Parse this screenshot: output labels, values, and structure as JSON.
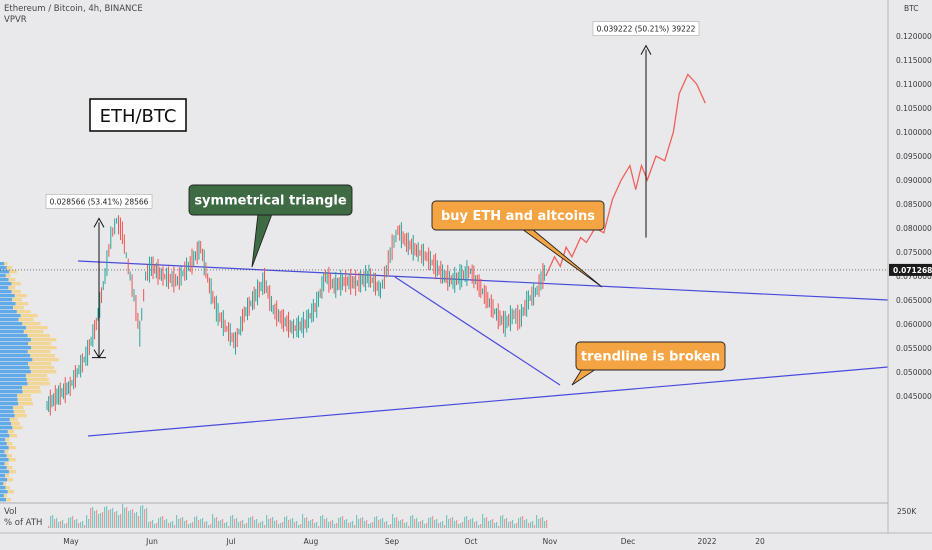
{
  "header": {
    "title": "Ethereum / Bitcoin, 4h, BINANCE",
    "indicator": "VPVR",
    "currency": "BTC"
  },
  "volume_panel": {
    "label": "Vol",
    "sublabel": "% of ATH",
    "scale_label": "250K"
  },
  "chart_data": {
    "type": "line",
    "pair_label": "ETH/BTC",
    "x_labels": [
      "May",
      "Jun",
      "Jul",
      "Aug",
      "Sep",
      "Oct",
      "Nov",
      "Dec",
      "2022",
      "20"
    ],
    "y_ticks": [
      "0.120000",
      "0.115000",
      "0.110000",
      "0.105000",
      "0.100000",
      "0.095000",
      "0.090000",
      "0.085000",
      "0.080000",
      "0.075000",
      "0.070000",
      "0.065000",
      "0.060000",
      "0.055000",
      "0.050000",
      "0.045000"
    ],
    "ylim": [
      0.042,
      0.124
    ],
    "last_price": "0.071268",
    "price_path": [
      [
        0,
        0.043
      ],
      [
        8,
        0.0452
      ],
      [
        16,
        0.047
      ],
      [
        22,
        0.0505
      ],
      [
        28,
        0.054
      ],
      [
        34,
        0.06
      ],
      [
        40,
        0.07
      ],
      [
        44,
        0.078
      ],
      [
        48,
        0.0815
      ],
      [
        52,
        0.079
      ],
      [
        56,
        0.072
      ],
      [
        60,
        0.066
      ],
      [
        64,
        0.058
      ],
      [
        68,
        0.07
      ],
      [
        72,
        0.072
      ],
      [
        80,
        0.07
      ],
      [
        90,
        0.069
      ],
      [
        100,
        0.073
      ],
      [
        106,
        0.076
      ],
      [
        112,
        0.068
      ],
      [
        118,
        0.062
      ],
      [
        124,
        0.059
      ],
      [
        130,
        0.056
      ],
      [
        136,
        0.062
      ],
      [
        144,
        0.066
      ],
      [
        150,
        0.069
      ],
      [
        156,
        0.063
      ],
      [
        162,
        0.061
      ],
      [
        170,
        0.059
      ],
      [
        178,
        0.06
      ],
      [
        186,
        0.064
      ],
      [
        192,
        0.07
      ],
      [
        198,
        0.068
      ],
      [
        206,
        0.069
      ],
      [
        214,
        0.0685
      ],
      [
        222,
        0.07
      ],
      [
        230,
        0.067
      ],
      [
        234,
        0.071
      ],
      [
        238,
        0.076
      ],
      [
        242,
        0.0795
      ],
      [
        248,
        0.077
      ],
      [
        256,
        0.075
      ],
      [
        262,
        0.074
      ],
      [
        268,
        0.072
      ],
      [
        274,
        0.07
      ],
      [
        280,
        0.069
      ],
      [
        286,
        0.07
      ],
      [
        292,
        0.071
      ],
      [
        298,
        0.068
      ],
      [
        304,
        0.065
      ],
      [
        310,
        0.062
      ],
      [
        316,
        0.06
      ],
      [
        322,
        0.062
      ],
      [
        326,
        0.061
      ],
      [
        332,
        0.065
      ],
      [
        338,
        0.067
      ],
      [
        342,
        0.07
      ],
      [
        344,
        0.0713
      ]
    ],
    "projection_path": [
      [
        344,
        0.07
      ],
      [
        350,
        0.074
      ],
      [
        354,
        0.072
      ],
      [
        358,
        0.076
      ],
      [
        362,
        0.074
      ],
      [
        368,
        0.078
      ],
      [
        372,
        0.077
      ],
      [
        378,
        0.08
      ],
      [
        384,
        0.079
      ],
      [
        390,
        0.086
      ],
      [
        396,
        0.09
      ],
      [
        402,
        0.093
      ],
      [
        406,
        0.088
      ],
      [
        410,
        0.093
      ],
      [
        414,
        0.09
      ],
      [
        420,
        0.095
      ],
      [
        426,
        0.094
      ],
      [
        432,
        0.1
      ],
      [
        436,
        0.108
      ],
      [
        442,
        0.112
      ],
      [
        448,
        0.11
      ],
      [
        454,
        0.106
      ]
    ],
    "measure_1": {
      "label": "0.028566 (53.41%) 28566",
      "from": 0.053,
      "to": 0.082
    },
    "measure_2": {
      "label": "0.039222 (50.21%) 39222",
      "from": 0.078,
      "to": 0.118
    },
    "annotations": [
      {
        "text": "symmetrical triangle",
        "bg": "#3e6b43"
      },
      {
        "text": "buy ETH and altcoins",
        "bg": "#f5a443"
      },
      {
        "text": "trendline is broken",
        "bg": "#f5a443"
      }
    ],
    "colors": {
      "price_up": "#26a69a",
      "price_down": "#ef5350",
      "projection": "#f0605a",
      "trendline": "#4b4bdb",
      "vp_blue": "#4a9ee8",
      "vp_yellow": "#f2d28a"
    }
  }
}
